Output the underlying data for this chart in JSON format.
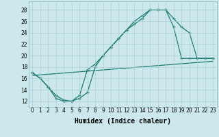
{
  "xlabel": "Humidex (Indice chaleur)",
  "background_color": "#cce8ec",
  "grid_color": "#aacdd4",
  "line_color": "#1a7a6e",
  "xlim": [
    -0.5,
    23.5
  ],
  "ylim": [
    11,
    29.5
  ],
  "xticks": [
    0,
    1,
    2,
    3,
    4,
    5,
    6,
    7,
    8,
    9,
    10,
    11,
    12,
    13,
    14,
    15,
    16,
    17,
    18,
    19,
    20,
    21,
    22,
    23
  ],
  "yticks": [
    12,
    14,
    16,
    18,
    20,
    22,
    24,
    26,
    28
  ],
  "series1_x": [
    0,
    1,
    2,
    3,
    4,
    5,
    6,
    7,
    8,
    9,
    10,
    11,
    12,
    13,
    14,
    15,
    16,
    17,
    18,
    19,
    20,
    21,
    22,
    23
  ],
  "series1_y": [
    17.0,
    16.0,
    14.5,
    12.5,
    12.0,
    12.0,
    12.5,
    13.5,
    18.0,
    20.0,
    21.5,
    23.0,
    24.5,
    25.5,
    26.5,
    28.0,
    28.0,
    28.0,
    26.5,
    25.0,
    24.0,
    19.5,
    19.5,
    19.5
  ],
  "series2_x": [
    0,
    1,
    2,
    3,
    4,
    5,
    6,
    7,
    8,
    9,
    10,
    11,
    12,
    13,
    14,
    15,
    16,
    17,
    18,
    19,
    20,
    21,
    22,
    23
  ],
  "series2_y": [
    17.0,
    16.0,
    14.5,
    13.0,
    12.2,
    12.0,
    13.0,
    17.5,
    18.5,
    20.0,
    21.5,
    23.0,
    24.5,
    26.0,
    27.0,
    28.0,
    28.0,
    28.0,
    25.0,
    19.5,
    19.5,
    19.5,
    19.5,
    19.5
  ],
  "series3_x": [
    0,
    23
  ],
  "series3_y": [
    16.5,
    19.0
  ],
  "font_size": 7
}
